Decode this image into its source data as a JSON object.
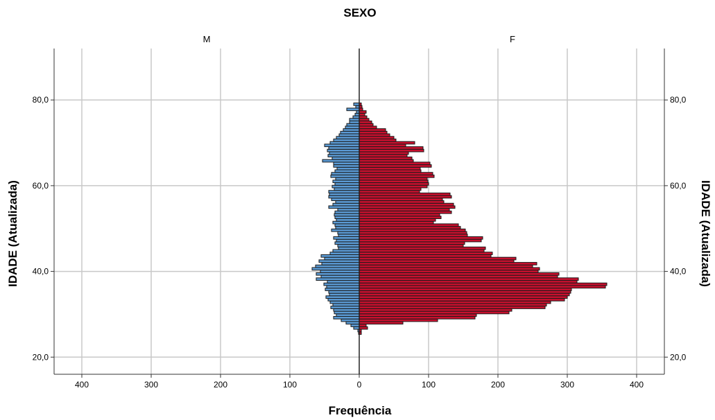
{
  "chart_data": {
    "type": "bar",
    "title": "SEXO",
    "xlabel": "Frequência",
    "ylabel": "IDADE (Atualizada)",
    "ylim": [
      16,
      92
    ],
    "xlim": [
      -440,
      440
    ],
    "grid": true,
    "legend": "none",
    "panel_left_label": "M",
    "panel_right_label": "F",
    "x_ticks": [
      {
        "value": -400,
        "label": "400"
      },
      {
        "value": -300,
        "label": "300"
      },
      {
        "value": -200,
        "label": "200"
      },
      {
        "value": -100,
        "label": "100"
      },
      {
        "value": 0,
        "label": "0"
      },
      {
        "value": 100,
        "label": "100"
      },
      {
        "value": 200,
        "label": "200"
      },
      {
        "value": 300,
        "label": "300"
      },
      {
        "value": 400,
        "label": "400"
      }
    ],
    "y_ticks": [
      {
        "value": 20,
        "label": "20,0"
      },
      {
        "value": 40,
        "label": "40,0"
      },
      {
        "value": 60,
        "label": "60,0"
      },
      {
        "value": 80,
        "label": "80,0"
      }
    ],
    "colors": {
      "M": "#5b9bd5",
      "F": "#c8102e",
      "edge": "#1a1a1a",
      "grid": "#c8c8c8"
    },
    "series": [
      {
        "name": "M",
        "bins": [
          [
            25.6,
            1
          ],
          [
            26.2,
            2
          ],
          [
            26.8,
            8
          ],
          [
            27.4,
            12
          ],
          [
            28.0,
            19
          ],
          [
            28.6,
            26
          ],
          [
            29.2,
            37
          ],
          [
            29.8,
            33
          ],
          [
            30.4,
            36
          ],
          [
            31.0,
            37
          ],
          [
            31.6,
            41
          ],
          [
            32.2,
            38
          ],
          [
            32.8,
            42
          ],
          [
            33.4,
            45
          ],
          [
            34.0,
            48
          ],
          [
            34.6,
            43
          ],
          [
            35.2,
            44
          ],
          [
            35.8,
            49
          ],
          [
            36.4,
            47
          ],
          [
            37.0,
            51
          ],
          [
            37.6,
            46
          ],
          [
            38.2,
            62
          ],
          [
            38.8,
            55
          ],
          [
            39.4,
            62
          ],
          [
            40.0,
            56
          ],
          [
            40.6,
            68
          ],
          [
            41.2,
            63
          ],
          [
            41.8,
            54
          ],
          [
            42.4,
            58
          ],
          [
            43.0,
            50
          ],
          [
            43.6,
            55
          ],
          [
            44.2,
            42
          ],
          [
            44.8,
            38
          ],
          [
            45.4,
            30
          ],
          [
            46.0,
            31
          ],
          [
            46.6,
            35
          ],
          [
            47.2,
            33
          ],
          [
            47.8,
            37
          ],
          [
            48.4,
            30
          ],
          [
            49.0,
            31
          ],
          [
            49.6,
            40
          ],
          [
            50.2,
            34
          ],
          [
            50.8,
            35
          ],
          [
            51.4,
            38
          ],
          [
            52.0,
            33
          ],
          [
            52.6,
            35
          ],
          [
            53.2,
            36
          ],
          [
            53.8,
            35
          ],
          [
            54.4,
            31
          ],
          [
            55.0,
            44
          ],
          [
            55.6,
            38
          ],
          [
            56.2,
            34
          ],
          [
            56.8,
            40
          ],
          [
            57.4,
            44
          ],
          [
            58.0,
            43
          ],
          [
            58.6,
            44
          ],
          [
            59.2,
            36
          ],
          [
            59.8,
            39
          ],
          [
            60.4,
            35
          ],
          [
            61.0,
            38
          ],
          [
            61.6,
            34
          ],
          [
            62.2,
            41
          ],
          [
            62.8,
            40
          ],
          [
            63.4,
            35
          ],
          [
            64.0,
            32
          ],
          [
            64.6,
            37
          ],
          [
            65.2,
            37
          ],
          [
            65.8,
            53
          ],
          [
            66.4,
            39
          ],
          [
            67.0,
            45
          ],
          [
            67.6,
            43
          ],
          [
            68.2,
            46
          ],
          [
            68.8,
            44
          ],
          [
            69.4,
            50
          ],
          [
            70.0,
            42
          ],
          [
            70.6,
            37
          ],
          [
            71.2,
            33
          ],
          [
            71.8,
            29
          ],
          [
            72.4,
            27
          ],
          [
            73.0,
            23
          ],
          [
            73.6,
            20
          ],
          [
            74.2,
            18
          ],
          [
            74.8,
            14
          ],
          [
            75.4,
            14
          ],
          [
            76.0,
            9
          ],
          [
            76.6,
            6
          ],
          [
            77.2,
            4
          ],
          [
            77.8,
            18
          ],
          [
            78.4,
            5
          ],
          [
            79.0,
            8
          ]
        ]
      },
      {
        "name": "F",
        "bins": [
          [
            25.6,
            3
          ],
          [
            26.2,
            3
          ],
          [
            26.8,
            12
          ],
          [
            27.4,
            10
          ],
          [
            28.0,
            63
          ],
          [
            28.6,
            113
          ],
          [
            29.2,
            167
          ],
          [
            29.8,
            169
          ],
          [
            30.4,
            216
          ],
          [
            31.0,
            220
          ],
          [
            31.6,
            268
          ],
          [
            32.2,
            270
          ],
          [
            32.8,
            276
          ],
          [
            33.4,
            296
          ],
          [
            34.0,
            300
          ],
          [
            34.6,
            303
          ],
          [
            35.2,
            305
          ],
          [
            35.8,
            306
          ],
          [
            36.4,
            355
          ],
          [
            37.0,
            357
          ],
          [
            37.6,
            314
          ],
          [
            38.2,
            316
          ],
          [
            38.8,
            286
          ],
          [
            39.4,
            288
          ],
          [
            40.0,
            258
          ],
          [
            40.6,
            260
          ],
          [
            41.2,
            250
          ],
          [
            41.8,
            256
          ],
          [
            42.4,
            223
          ],
          [
            43.0,
            226
          ],
          [
            43.6,
            190
          ],
          [
            44.2,
            192
          ],
          [
            44.8,
            180
          ],
          [
            45.4,
            182
          ],
          [
            46.0,
            150
          ],
          [
            46.6,
            152
          ],
          [
            47.2,
            176
          ],
          [
            47.8,
            178
          ],
          [
            48.4,
            156
          ],
          [
            49.0,
            155
          ],
          [
            49.6,
            153
          ],
          [
            50.2,
            146
          ],
          [
            50.8,
            143
          ],
          [
            51.4,
            107
          ],
          [
            52.0,
            110
          ],
          [
            52.6,
            118
          ],
          [
            53.2,
            116
          ],
          [
            53.8,
            133
          ],
          [
            54.4,
            130
          ],
          [
            55.0,
            138
          ],
          [
            55.6,
            136
          ],
          [
            56.2,
            122
          ],
          [
            56.8,
            120
          ],
          [
            57.4,
            133
          ],
          [
            58.0,
            131
          ],
          [
            58.6,
            87
          ],
          [
            59.2,
            89
          ],
          [
            59.8,
            98
          ],
          [
            60.4,
            100
          ],
          [
            61.0,
            99
          ],
          [
            61.6,
            98
          ],
          [
            62.2,
            108
          ],
          [
            62.8,
            106
          ],
          [
            63.4,
            89
          ],
          [
            64.0,
            88
          ],
          [
            64.6,
            104
          ],
          [
            65.2,
            102
          ],
          [
            65.8,
            78
          ],
          [
            66.4,
            76
          ],
          [
            67.0,
            69
          ],
          [
            67.6,
            71
          ],
          [
            68.2,
            93
          ],
          [
            68.8,
            92
          ],
          [
            69.4,
            67
          ],
          [
            70.0,
            80
          ],
          [
            70.6,
            53
          ],
          [
            71.2,
            50
          ],
          [
            71.8,
            44
          ],
          [
            72.4,
            40
          ],
          [
            73.0,
            38
          ],
          [
            73.6,
            25
          ],
          [
            74.2,
            20
          ],
          [
            74.8,
            18
          ],
          [
            75.4,
            14
          ],
          [
            76.0,
            11
          ],
          [
            76.6,
            8
          ],
          [
            77.2,
            10
          ],
          [
            77.8,
            5
          ],
          [
            78.4,
            4
          ],
          [
            79.0,
            3
          ]
        ]
      }
    ]
  }
}
